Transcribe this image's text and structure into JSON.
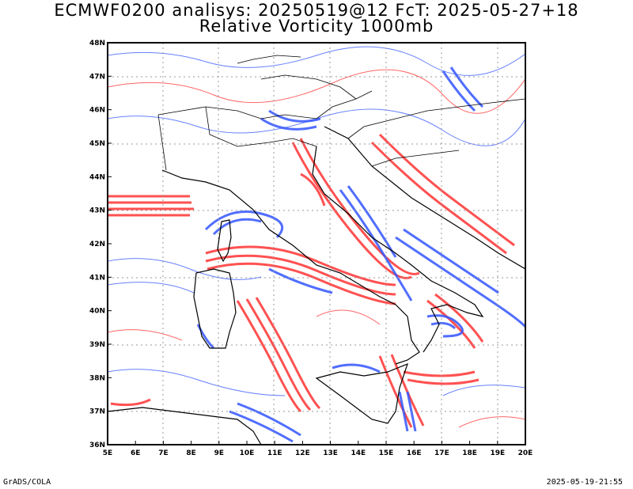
{
  "title_line1": "ECMWF0200 analisys: 20250519@12 FcT: 2025-05-27+18",
  "title_line2": "Relative Vorticity 1000mb",
  "footer_left": "GrADS/COLA",
  "footer_right": "2025-05-19-21:55",
  "map": {
    "lon_range": [
      5,
      20
    ],
    "lat_range": [
      36,
      48
    ],
    "x_ticks": [
      "5E",
      "6E",
      "7E",
      "8E",
      "9E",
      "10E",
      "11E",
      "12E",
      "13E",
      "14E",
      "15E",
      "16E",
      "17E",
      "18E",
      "19E",
      "20E"
    ],
    "y_ticks": [
      "36N",
      "37N",
      "38N",
      "39N",
      "40N",
      "41N",
      "42N",
      "43N",
      "44N",
      "45N",
      "46N",
      "47N",
      "48N"
    ],
    "positive_color": "#ff3333",
    "negative_color": "#3355ff",
    "coast_color": "#000000",
    "grid": "dotted"
  }
}
